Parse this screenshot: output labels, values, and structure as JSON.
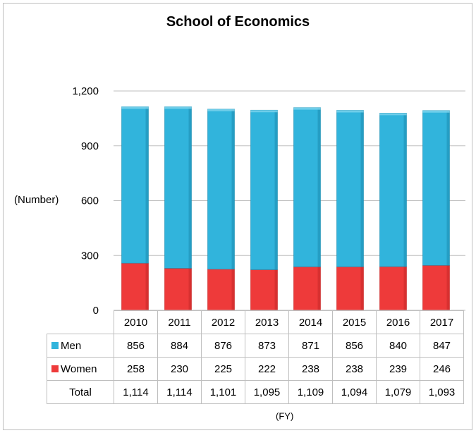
{
  "chart_data": {
    "type": "bar",
    "stacked": true,
    "title": "School of Economics",
    "ylabel": "(Number)",
    "xlabel": "(FY)",
    "ylim": [
      0,
      1200
    ],
    "yticks": [
      "0",
      "300",
      "600",
      "900",
      "1,200"
    ],
    "grid": true,
    "categories": [
      "2010",
      "2011",
      "2012",
      "2013",
      "2014",
      "2015",
      "2016",
      "2017"
    ],
    "series": [
      {
        "name": "Men",
        "color": "#31b4dc",
        "values": [
          856,
          884,
          876,
          873,
          871,
          856,
          840,
          847
        ],
        "labels": [
          "856",
          "884",
          "876",
          "873",
          "871",
          "856",
          "840",
          "847"
        ]
      },
      {
        "name": "Women",
        "color": "#ee3a3a",
        "values": [
          258,
          230,
          225,
          222,
          238,
          238,
          239,
          246
        ],
        "labels": [
          "258",
          "230",
          "225",
          "222",
          "238",
          "238",
          "239",
          "246"
        ]
      }
    ],
    "total": {
      "name": "Total",
      "labels": [
        "1,114",
        "1,114",
        "1,101",
        "1,095",
        "1,109",
        "1,094",
        "1,079",
        "1,093"
      ]
    }
  }
}
